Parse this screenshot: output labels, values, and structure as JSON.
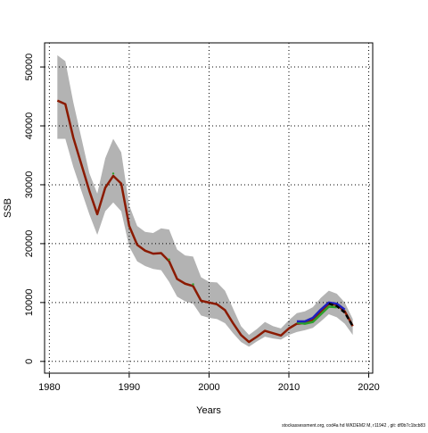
{
  "chart_data": {
    "type": "line",
    "xlabel": "Years",
    "ylabel": "SSB",
    "footnote": "stockassessment.org, cod4a hd WKDEM2 M, r11942 , git: df0b7c1bcb83",
    "x": [
      1981,
      1982,
      1983,
      1984,
      1985,
      1986,
      1987,
      1988,
      1989,
      1990,
      1991,
      1992,
      1993,
      1994,
      1995,
      1996,
      1997,
      1998,
      1999,
      2000,
      2001,
      2002,
      2003,
      2004,
      2005,
      2006,
      2007,
      2008,
      2009,
      2010,
      2011,
      2012,
      2013,
      2014,
      2015,
      2016,
      2017,
      2018
    ],
    "band": {
      "color": "#b3b3b3",
      "upper": [
        52000,
        51000,
        44000,
        38000,
        32000,
        28500,
        34500,
        37800,
        35500,
        26500,
        23000,
        22000,
        21800,
        22600,
        22400,
        19000,
        18000,
        17800,
        14300,
        13500,
        13400,
        12000,
        9000,
        6000,
        4500,
        5500,
        6700,
        6000,
        5600,
        7000,
        8200,
        8500,
        9200,
        10800,
        12000,
        11500,
        10000,
        7200
      ],
      "lower": [
        37800,
        37800,
        33000,
        29000,
        25000,
        21500,
        25500,
        27000,
        25500,
        19500,
        17000,
        16200,
        15700,
        15500,
        13500,
        11000,
        10200,
        9800,
        7800,
        7400,
        7200,
        6500,
        4800,
        3300,
        2500,
        3400,
        4200,
        3900,
        3700,
        4500,
        5000,
        5300,
        5700,
        6800,
        8000,
        7500,
        6400,
        4500
      ]
    },
    "series": [
      {
        "color": "#8b1a00",
        "dash": false,
        "values": [
          44300,
          43700,
          38000,
          33500,
          29000,
          25000,
          29500,
          31500,
          30200,
          23000,
          19800,
          18800,
          18300,
          18400,
          17000,
          14000,
          13200,
          12800,
          10300,
          10000,
          9700,
          8700,
          6500,
          4500,
          3300,
          4200,
          5200,
          4800,
          4400,
          5600,
          6400,
          6500,
          7000,
          8500,
          9800,
          9600,
          8500,
          6000
        ]
      },
      {
        "color": "#2ca02c",
        "dash": false,
        "values": [
          null,
          null,
          null,
          null,
          null,
          null,
          null,
          31900,
          null,
          null,
          null,
          null,
          null,
          null,
          17300,
          null,
          null,
          13100,
          null,
          null,
          null,
          null,
          null,
          null,
          null,
          null,
          null,
          null,
          null,
          null,
          6600,
          6400,
          6700,
          8000,
          9300,
          9200,
          null,
          null
        ]
      },
      {
        "color": "#1f1fbf",
        "dash": false,
        "values": [
          null,
          null,
          null,
          null,
          null,
          null,
          null,
          null,
          null,
          null,
          null,
          null,
          null,
          null,
          null,
          null,
          null,
          null,
          null,
          null,
          null,
          null,
          null,
          null,
          null,
          null,
          null,
          null,
          null,
          null,
          6800,
          6800,
          7400,
          8800,
          10000,
          9800,
          8800,
          null
        ]
      },
      {
        "color": "#000000",
        "dash": true,
        "values": [
          null,
          null,
          null,
          null,
          null,
          null,
          null,
          null,
          null,
          null,
          null,
          null,
          null,
          null,
          null,
          null,
          null,
          null,
          null,
          null,
          null,
          null,
          null,
          null,
          null,
          null,
          null,
          null,
          null,
          null,
          null,
          null,
          null,
          null,
          9800,
          9400,
          8300,
          6000
        ]
      }
    ],
    "xlim": [
      1979.4,
      2020.5
    ],
    "ylim": [
      -2000,
      54100
    ],
    "xticks": [
      1980,
      1990,
      2000,
      2010,
      2020
    ],
    "yticks": [
      0,
      10000,
      20000,
      30000,
      40000,
      50000
    ],
    "grid": true
  }
}
